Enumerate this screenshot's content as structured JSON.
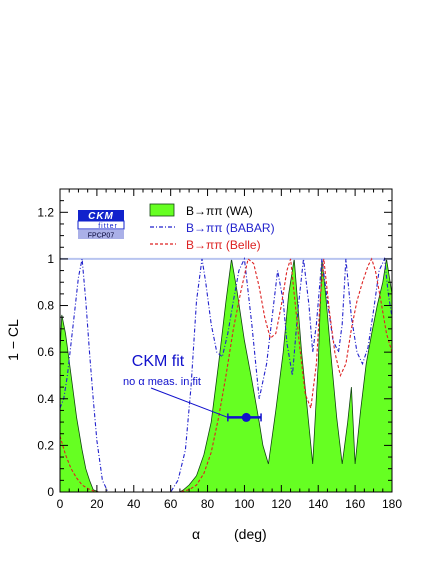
{
  "chart_data": {
    "type": "area",
    "ylabel": "1 − CL",
    "xlabel": "α",
    "xunit": "(deg)",
    "xlim": [
      0,
      180
    ],
    "ylim": [
      0,
      1.3
    ],
    "xticks": [
      0,
      20,
      40,
      60,
      80,
      100,
      120,
      140,
      160,
      180
    ],
    "yticks": [
      0,
      0.2,
      0.4,
      0.6,
      0.8,
      1,
      1.2
    ],
    "reference_line_y": 1,
    "legend_position": "top",
    "series": [
      {
        "name": "B→ππ (WA)",
        "style": "filled",
        "color": "#66ff22",
        "stroke": "#114411",
        "x": [
          0,
          1,
          3,
          6,
          9,
          12,
          14,
          16,
          18,
          21,
          40,
          65,
          67,
          70,
          74,
          78,
          82,
          86,
          90,
          93,
          96,
          100,
          104,
          108,
          110,
          113,
          117,
          121,
          124,
          127,
          129,
          131,
          134,
          137,
          140,
          142,
          144,
          147,
          150,
          153,
          156,
          158,
          160,
          163,
          166,
          169,
          172,
          175,
          177,
          180
        ],
        "y": [
          0.6,
          0.76,
          0.68,
          0.5,
          0.32,
          0.18,
          0.1,
          0.05,
          0.01,
          0,
          0,
          0,
          0.01,
          0.03,
          0.07,
          0.16,
          0.3,
          0.55,
          0.82,
          1,
          0.86,
          0.65,
          0.48,
          0.3,
          0.2,
          0.12,
          0.35,
          0.6,
          0.85,
          1,
          0.8,
          0.6,
          0.36,
          0.12,
          0.55,
          1,
          0.85,
          0.58,
          0.32,
          0.12,
          0.3,
          0.45,
          0.12,
          0.35,
          0.55,
          0.68,
          0.8,
          0.9,
          1,
          0.85
        ]
      },
      {
        "name": "B→ππ (BABAR)",
        "style": "dash-dot",
        "color": "#2222cc",
        "x": [
          0,
          2,
          4,
          6,
          8,
          10,
          12,
          14,
          16,
          18,
          20,
          23,
          26,
          60,
          64,
          68,
          71,
          74,
          77,
          79,
          82,
          85,
          88,
          91,
          94,
          97,
          100,
          104,
          108,
          112,
          115,
          118,
          121,
          123,
          126,
          129,
          132,
          135,
          137,
          139,
          142,
          145,
          148,
          151,
          153,
          155,
          158,
          161,
          164,
          167,
          170,
          173,
          176,
          178,
          180
        ],
        "y": [
          0.36,
          0.4,
          0.5,
          0.64,
          0.78,
          0.92,
          1,
          0.82,
          0.6,
          0.4,
          0.22,
          0.05,
          0,
          0,
          0.05,
          0.18,
          0.45,
          0.82,
          1,
          0.9,
          0.72,
          0.6,
          0.58,
          0.68,
          0.82,
          0.95,
          1,
          0.72,
          0.4,
          0.55,
          0.75,
          0.95,
          0.82,
          0.64,
          0.5,
          0.78,
          1,
          0.8,
          0.6,
          0.72,
          1,
          0.82,
          0.65,
          0.6,
          0.72,
          1,
          0.75,
          0.6,
          0.55,
          0.62,
          0.78,
          0.95,
          1,
          0.85,
          0.75
        ]
      },
      {
        "name": "B→ππ (Belle)",
        "style": "dashed",
        "color": "#dd2222",
        "x": [
          0,
          3,
          6,
          9,
          12,
          15,
          18,
          21,
          24,
          28,
          60,
          65,
          70,
          74,
          78,
          82,
          86,
          90,
          94,
          98,
          102,
          105,
          108,
          111,
          114,
          117,
          120,
          123,
          125,
          127,
          130,
          133,
          136,
          139,
          141,
          143,
          146,
          149,
          152,
          155,
          158,
          161,
          164,
          167,
          169,
          171,
          174,
          177,
          180
        ],
        "y": [
          0.24,
          0.16,
          0.1,
          0.06,
          0.03,
          0.015,
          0.005,
          0,
          0,
          0,
          0,
          0,
          0.01,
          0.03,
          0.08,
          0.17,
          0.32,
          0.5,
          0.7,
          0.86,
          1,
          0.98,
          0.88,
          0.75,
          0.66,
          0.68,
          0.8,
          0.95,
          1,
          0.85,
          0.62,
          0.42,
          0.36,
          0.55,
          0.82,
          1,
          0.78,
          0.6,
          0.5,
          0.55,
          0.7,
          0.82,
          0.9,
          0.97,
          1,
          0.95,
          0.82,
          0.68,
          0.6
        ]
      }
    ],
    "annotation": {
      "title": "CKM fit",
      "subtitle": "no α meas. in fit",
      "point": {
        "x": 101,
        "y": 0.32
      },
      "errorbar": [
        91,
        109
      ],
      "color": "#1111cc"
    }
  },
  "logo": {
    "line1": "CKM",
    "line2": "fitter",
    "line3": "FPCP07"
  }
}
